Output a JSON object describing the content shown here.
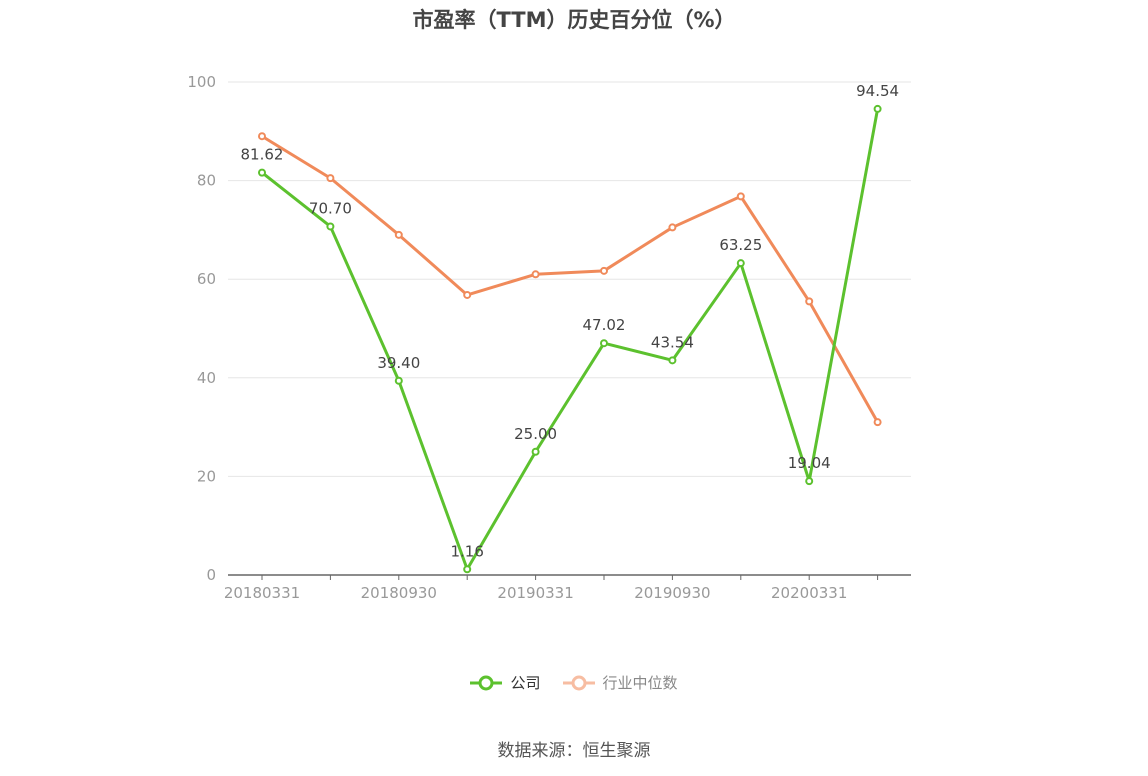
{
  "chart_data": {
    "type": "line",
    "title": "市盈率（TTM）历史百分位（%）",
    "x": [
      "20180331",
      "20180630",
      "20180930",
      "20181231",
      "20190331",
      "20190630",
      "20190930",
      "20191231",
      "20200331",
      "20200630"
    ],
    "xtick_labels": [
      "20180331",
      "20180930",
      "20190331",
      "20190930",
      "20200331"
    ],
    "ylim": [
      0,
      100
    ],
    "yticks": [
      0,
      20,
      40,
      60,
      80,
      100
    ],
    "grid": true,
    "legend_position": "bottom",
    "series": [
      {
        "name": "公司",
        "color": "#5cc12e",
        "values": [
          81.62,
          70.7,
          39.4,
          1.16,
          25.0,
          47.02,
          43.54,
          63.25,
          19.04,
          94.54
        ],
        "labels": [
          "81.62",
          "70.70",
          "39.40",
          "1.16",
          "25.00",
          "47.02",
          "43.54",
          "63.25",
          "19.04",
          "94.54"
        ]
      },
      {
        "name": "行业中位数",
        "color": "#f08a5a",
        "values": [
          89.0,
          80.5,
          69.0,
          56.8,
          61.0,
          61.7,
          70.5,
          76.8,
          55.5,
          31.0
        ]
      }
    ]
  },
  "source": "数据来源：恒生聚源"
}
